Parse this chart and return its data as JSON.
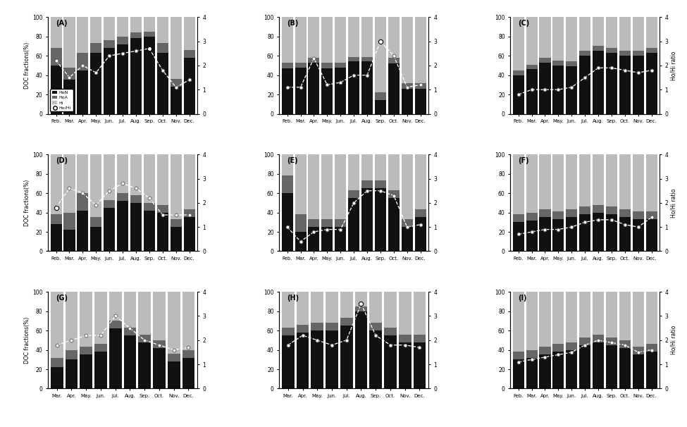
{
  "panels": [
    {
      "label": "A",
      "months": [
        "Feb.",
        "Mar.",
        "Apr.",
        "May.",
        "Jun.",
        "Jul.",
        "Aug.",
        "Sep.",
        "Oct.",
        "Nov.",
        "Dec."
      ],
      "HoN": [
        50,
        35,
        45,
        63,
        68,
        72,
        78,
        80,
        63,
        28,
        58
      ],
      "HoA": [
        18,
        13,
        18,
        10,
        8,
        8,
        6,
        5,
        10,
        8,
        8
      ],
      "Hi": [
        32,
        52,
        37,
        27,
        24,
        20,
        16,
        15,
        27,
        64,
        34
      ],
      "ratio": [
        2.2,
        1.5,
        2.0,
        1.7,
        2.4,
        2.5,
        2.6,
        2.7,
        1.8,
        1.1,
        1.4
      ],
      "open_idx": 7
    },
    {
      "label": "B",
      "months": [
        "Feb.",
        "Mar.",
        "Apr.",
        "May.",
        "Jun.",
        "Jul.",
        "Aug.",
        "Sep.",
        "Oct.",
        "Nov.",
        "Dec."
      ],
      "HoN": [
        47,
        48,
        53,
        47,
        48,
        54,
        54,
        14,
        52,
        26,
        26
      ],
      "HoA": [
        6,
        5,
        5,
        6,
        5,
        5,
        5,
        8,
        6,
        6,
        6
      ],
      "Hi": [
        47,
        47,
        42,
        47,
        47,
        41,
        41,
        78,
        42,
        68,
        68
      ],
      "ratio": [
        1.1,
        1.1,
        2.3,
        1.2,
        1.3,
        1.6,
        1.6,
        3.0,
        2.4,
        1.1,
        1.2
      ],
      "open_idx": 7
    },
    {
      "label": "C",
      "months": [
        "Feb.",
        "Mar.",
        "Apr.",
        "May.",
        "Jun.",
        "Jul.",
        "Aug.",
        "Sep.",
        "Oct.",
        "Nov.",
        "Dec."
      ],
      "HoN": [
        40,
        46,
        53,
        50,
        49,
        60,
        65,
        63,
        60,
        60,
        63
      ],
      "HoA": [
        5,
        5,
        5,
        5,
        5,
        5,
        5,
        5,
        5,
        5,
        5
      ],
      "Hi": [
        55,
        49,
        42,
        45,
        46,
        35,
        30,
        32,
        35,
        35,
        32
      ],
      "ratio": [
        0.8,
        1.0,
        1.0,
        1.0,
        1.1,
        1.5,
        1.9,
        1.9,
        1.8,
        1.7,
        1.8
      ],
      "open_idx": -1
    },
    {
      "label": "D",
      "months": [
        "Feb.",
        "Mar.",
        "Apr.",
        "May.",
        "Jun.",
        "Jul.",
        "Aug.",
        "Sep.",
        "Oct.",
        "Nov.",
        "Dec."
      ],
      "HoN": [
        28,
        22,
        42,
        25,
        45,
        52,
        50,
        42,
        40,
        25,
        35
      ],
      "HoA": [
        10,
        18,
        18,
        10,
        8,
        8,
        8,
        8,
        8,
        8,
        8
      ],
      "Hi": [
        62,
        60,
        40,
        65,
        47,
        40,
        42,
        50,
        52,
        67,
        57
      ],
      "ratio": [
        1.8,
        2.6,
        2.4,
        1.9,
        2.5,
        2.8,
        2.6,
        2.2,
        1.5,
        1.5,
        1.5
      ],
      "open_idx": 0
    },
    {
      "label": "E",
      "months": [
        "Feb.",
        "Mar.",
        "Apr.",
        "May.",
        "Jun.",
        "Jul.",
        "Aug.",
        "Sep.",
        "Oct.",
        "Nov.",
        "Dec."
      ],
      "HoN": [
        60,
        20,
        25,
        25,
        25,
        55,
        65,
        65,
        55,
        25,
        35
      ],
      "HoA": [
        18,
        18,
        8,
        8,
        8,
        8,
        8,
        8,
        8,
        8,
        8
      ],
      "Hi": [
        22,
        62,
        67,
        67,
        67,
        37,
        27,
        27,
        37,
        67,
        57
      ],
      "ratio": [
        1.0,
        0.4,
        0.8,
        0.9,
        0.9,
        2.0,
        2.5,
        2.5,
        2.3,
        1.0,
        1.1
      ],
      "open_idx": -1
    },
    {
      "label": "F",
      "months": [
        "Feb.",
        "Mar.",
        "Apr.",
        "May.",
        "Jun.",
        "Jul.",
        "Aug.",
        "Sep.",
        "Oct.",
        "Nov.",
        "Dec."
      ],
      "HoN": [
        30,
        32,
        35,
        33,
        35,
        38,
        40,
        38,
        35,
        33,
        33
      ],
      "HoA": [
        8,
        8,
        8,
        8,
        8,
        8,
        8,
        8,
        8,
        8,
        8
      ],
      "Hi": [
        62,
        60,
        57,
        59,
        57,
        54,
        52,
        54,
        57,
        59,
        59
      ],
      "ratio": [
        0.7,
        0.8,
        0.9,
        0.9,
        1.0,
        1.2,
        1.3,
        1.3,
        1.1,
        1.0,
        1.4
      ],
      "open_idx": -1
    },
    {
      "label": "G",
      "months": [
        "Mar.",
        "Apr.",
        "May.",
        "Jun.",
        "Jul.",
        "Aug.",
        "Sep.",
        "Oct.",
        "Nov.",
        "Dec."
      ],
      "HoN": [
        22,
        30,
        35,
        38,
        62,
        55,
        48,
        42,
        28,
        32
      ],
      "HoA": [
        10,
        10,
        8,
        8,
        8,
        8,
        8,
        8,
        8,
        8
      ],
      "Hi": [
        68,
        60,
        57,
        54,
        30,
        37,
        44,
        50,
        64,
        60
      ],
      "ratio": [
        1.8,
        2.0,
        2.2,
        2.2,
        3.0,
        2.5,
        2.0,
        1.8,
        1.6,
        1.7
      ],
      "open_idx": -1
    },
    {
      "label": "H",
      "months": [
        "Mar.",
        "Apr.",
        "May.",
        "Jun.",
        "Jul.",
        "Aug.",
        "Sep.",
        "Oct.",
        "Nov.",
        "Dec."
      ],
      "HoN": [
        55,
        58,
        60,
        60,
        65,
        80,
        60,
        55,
        48,
        48
      ],
      "HoA": [
        8,
        8,
        8,
        8,
        8,
        5,
        8,
        8,
        8,
        8
      ],
      "Hi": [
        37,
        34,
        32,
        32,
        27,
        15,
        32,
        37,
        44,
        44
      ],
      "ratio": [
        1.8,
        2.2,
        2.0,
        1.8,
        2.0,
        3.5,
        2.2,
        1.8,
        1.8,
        1.7
      ],
      "open_idx": 5
    },
    {
      "label": "I",
      "months": [
        "Feb.",
        "Mar.",
        "Apr.",
        "May.",
        "Jun.",
        "Jul.",
        "Aug.",
        "Sep.",
        "Oct.",
        "Nov.",
        "Dec."
      ],
      "HoN": [
        30,
        32,
        35,
        38,
        40,
        45,
        48,
        45,
        42,
        35,
        38
      ],
      "HoA": [
        8,
        8,
        8,
        8,
        8,
        8,
        8,
        8,
        8,
        8,
        8
      ],
      "Hi": [
        62,
        60,
        57,
        54,
        52,
        47,
        44,
        47,
        50,
        57,
        54
      ],
      "ratio": [
        1.1,
        1.2,
        1.3,
        1.4,
        1.5,
        1.8,
        2.0,
        1.9,
        1.8,
        1.5,
        1.6
      ],
      "open_idx": -1
    }
  ],
  "colors": {
    "HoN": "#111111",
    "HoA": "#666666",
    "Hi": "#bbbbbb",
    "line_color": "white",
    "bg": "white"
  },
  "ylim_bar": [
    0,
    100
  ],
  "ylim_ratio": [
    0,
    4
  ],
  "ylabel_left": "DOC fractions(%)",
  "ylabel_right": "Ho/Hi ratio",
  "bar_width": 0.85,
  "figsize": [
    9.75,
    6.06
  ],
  "dpi": 100
}
